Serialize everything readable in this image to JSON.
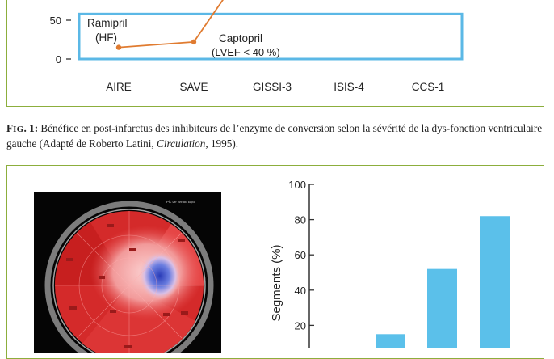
{
  "chart_data": [
    {
      "type": "line",
      "categories": [
        "AIRE",
        "SAVE",
        "GISSI-3",
        "ISIS-4",
        "CCS-1"
      ],
      "ytick_labels": [
        "0",
        "50"
      ],
      "series": [
        {
          "name": "",
          "values": [
            15,
            22,
            null,
            null,
            null
          ]
        }
      ],
      "annotations": [
        {
          "id": "ramipril",
          "line1": "Ramipril",
          "line2": "(HF)"
        },
        {
          "id": "captopril",
          "line1": "Captopril",
          "line2": "(LVEF < 40 %)"
        }
      ],
      "highlight_box": {
        "from_category": "AIRE",
        "to_category": "CCS-1",
        "y_range": [
          0,
          58
        ]
      },
      "colors": {
        "line": "#e07b30",
        "box": "#5bb8e6",
        "frame": "#8cae3c"
      }
    },
    {
      "type": "bar",
      "ylabel": "Segments (%)",
      "ytick_labels": [
        "20",
        "40",
        "60",
        "80",
        "100"
      ],
      "ylim": [
        0,
        100
      ],
      "values": [
        15,
        52,
        82
      ],
      "colors": {
        "bar": "#5bc0ea",
        "frame": "#8cae3c"
      }
    }
  ],
  "caption": {
    "label_first": "F",
    "label_smallcaps": "IG",
    "label_number": ". 1:",
    "text_before_italic": " Bénéfice en post-infarctus des inhibiteurs de l’enzyme de conversion selon la sévérité de la dys-fonction ventriculaire gauche (Adapté de Roberto Latini, ",
    "italic": "Circulation",
    "text_after_italic": ", 1995)."
  },
  "bullseye": {
    "header_text": "Pic de Wrote Byte",
    "colors": {
      "background": "#050505",
      "outer": "#d42a2a",
      "mid": "#ee5555",
      "light": "#f6b4b4",
      "core": "#4a5fd0",
      "ring": "#8a8a8a"
    }
  }
}
